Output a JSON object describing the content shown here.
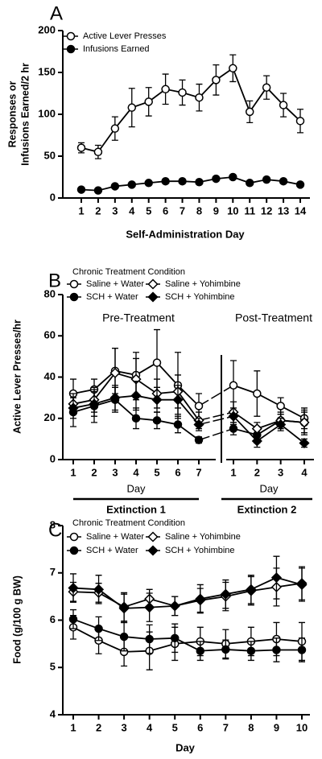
{
  "chart_data": [
    {
      "type": "line",
      "title": "A",
      "ylabel": [
        "Responses or",
        "Infusions Earned/2 hr"
      ],
      "xlabel": "Self-Administration Day",
      "categories": [
        1,
        2,
        3,
        4,
        5,
        6,
        7,
        8,
        9,
        10,
        11,
        12,
        13,
        14
      ],
      "ylim": [
        0,
        200
      ],
      "yticks": [
        0,
        50,
        100,
        150,
        200
      ],
      "series": [
        {
          "name": "Active Lever Presses",
          "marker": "circle-open",
          "color": "#000000",
          "values": [
            60,
            55,
            83,
            108,
            115,
            130,
            126,
            120,
            141,
            155,
            103,
            132,
            111,
            92
          ],
          "errors": [
            6,
            8,
            14,
            23,
            17,
            18,
            15,
            16,
            18,
            16,
            13,
            14,
            14,
            14
          ]
        },
        {
          "name": "Infusions Earned",
          "marker": "circle-filled",
          "color": "#000000",
          "values": [
            10,
            9,
            14,
            16,
            18,
            20,
            20,
            19,
            23,
            25,
            18,
            22,
            20,
            16
          ],
          "errors": [
            1.5,
            1.5,
            2,
            2,
            2,
            2,
            2,
            2,
            2,
            2,
            2,
            2,
            2,
            2
          ]
        }
      ]
    },
    {
      "type": "line",
      "title": "B",
      "legend_title": "Chronic Treatment Condition",
      "ylabel": "Active Lever Presses/hr",
      "groups": [
        {
          "name": "Extinction 1",
          "subtitle": "Pre-Treatment",
          "xlabel": "Day",
          "categories": [
            "1",
            "2",
            "3",
            "4",
            "5",
            "6",
            "7"
          ]
        },
        {
          "name": "Extinction 2",
          "subtitle": "Post-Treatment",
          "xlabel": "Day",
          "categories": [
            "1",
            "2",
            "3",
            "4"
          ]
        }
      ],
      "ylim": [
        0,
        80
      ],
      "yticks": [
        0,
        20,
        40,
        60,
        80
      ],
      "series": [
        {
          "name": "Saline + Water",
          "marker": "circle-open",
          "color": "#000000",
          "values": [
            32,
            34,
            43,
            41,
            47,
            36,
            26,
            36,
            32,
            26,
            20
          ],
          "errors": [
            7,
            5,
            11,
            11,
            16,
            16,
            6,
            12,
            11,
            4,
            5
          ]
        },
        {
          "name": "SCH + Water",
          "marker": "circle-filled",
          "color": "#000000",
          "values": [
            23,
            26,
            29,
            20,
            19,
            17,
            9.5,
            15,
            12,
            19,
            18
          ],
          "errors": [
            7,
            8,
            6,
            5,
            4,
            4,
            1.5,
            3,
            4,
            3,
            5
          ]
        },
        {
          "name": "Saline + Yohimbine",
          "marker": "diamond-open",
          "color": "#000000",
          "values": [
            27,
            29,
            42,
            39,
            32,
            33,
            19,
            23,
            15,
            19,
            18
          ],
          "errors": [
            5,
            6,
            12,
            10,
            7,
            8,
            4,
            5,
            3,
            4,
            6
          ]
        },
        {
          "name": "SCH + Yohimbine",
          "marker": "diamond-filled",
          "color": "#000000",
          "values": [
            25,
            27,
            30,
            31,
            29,
            29,
            17,
            21,
            9,
            17,
            8
          ],
          "errors": [
            5,
            6,
            6,
            7,
            6,
            7,
            3,
            4,
            3,
            3,
            2
          ]
        }
      ]
    },
    {
      "type": "line",
      "title": "C",
      "legend_title": "Chronic Treatment Condition",
      "ylabel": "Food (g/100 g BW)",
      "xlabel": "Day",
      "categories": [
        1,
        2,
        3,
        4,
        5,
        6,
        7,
        8,
        9,
        10
      ],
      "ylim": [
        4,
        8
      ],
      "yticks": [
        4,
        5,
        6,
        7,
        8
      ],
      "series": [
        {
          "name": "Saline + Water",
          "marker": "circle-open",
          "color": "#000000",
          "values": [
            5.85,
            5.57,
            5.33,
            5.35,
            5.5,
            5.55,
            5.5,
            5.55,
            5.6,
            5.55
          ],
          "errors": [
            0.25,
            0.28,
            0.3,
            0.4,
            0.35,
            0.3,
            0.3,
            0.3,
            0.35,
            0.4
          ]
        },
        {
          "name": "SCH + Water",
          "marker": "circle-filled",
          "color": "#000000",
          "values": [
            6.02,
            5.82,
            5.65,
            5.6,
            5.62,
            5.35,
            5.38,
            5.35,
            5.37,
            5.37
          ],
          "errors": [
            0.2,
            0.25,
            0.3,
            0.3,
            0.3,
            0.2,
            0.2,
            0.2,
            0.25,
            0.25
          ]
        },
        {
          "name": "Saline + Yohimbine",
          "marker": "diamond-open",
          "color": "#000000",
          "values": [
            6.6,
            6.58,
            6.28,
            6.45,
            6.3,
            6.42,
            6.5,
            6.62,
            6.7,
            6.78
          ],
          "errors": [
            0.2,
            0.2,
            0.3,
            0.2,
            0.2,
            0.25,
            0.3,
            0.3,
            0.4,
            0.35
          ]
        },
        {
          "name": "SCH + Yohimbine",
          "marker": "diamond-filled",
          "color": "#000000",
          "values": [
            6.68,
            6.65,
            6.25,
            6.27,
            6.3,
            6.45,
            6.55,
            6.65,
            6.9,
            6.75
          ],
          "errors": [
            0.3,
            0.3,
            0.3,
            0.3,
            0.2,
            0.3,
            0.3,
            0.3,
            0.45,
            0.35
          ]
        }
      ]
    }
  ]
}
